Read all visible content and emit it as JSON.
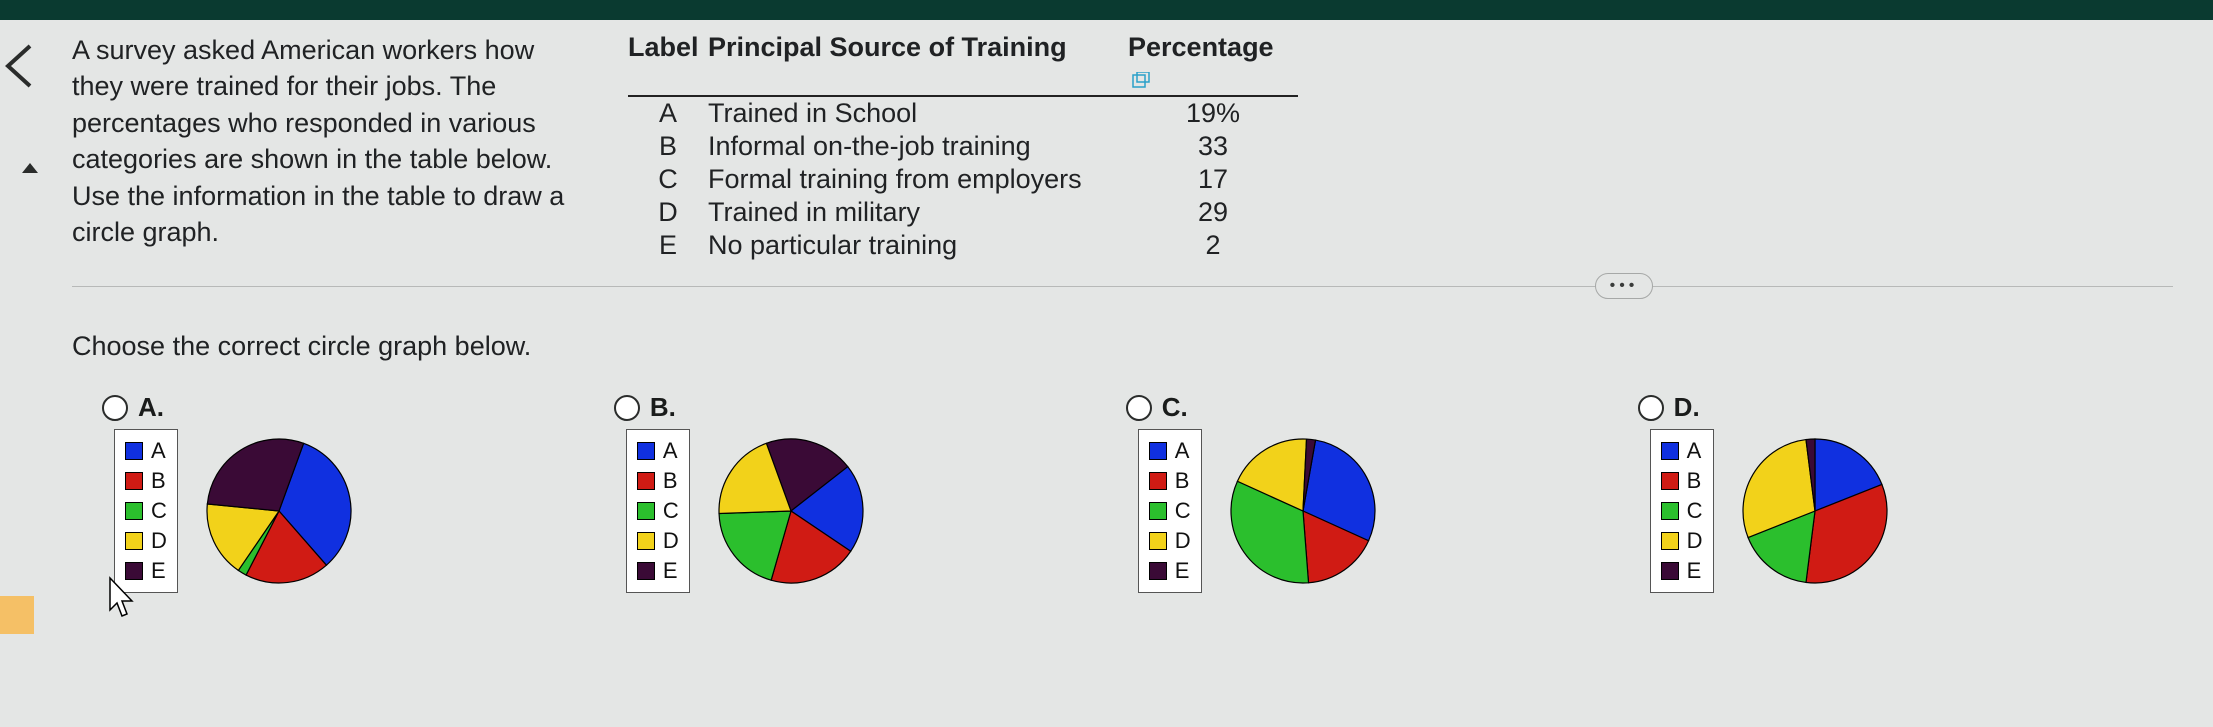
{
  "question_text": "A survey asked American workers how they were trained for their jobs. The percentages who responded in various categories are shown in the table below. Use the information in the table to draw a circle graph.",
  "table": {
    "headers": {
      "label": "Label",
      "source": "Principal Source of Training",
      "pct": "Percentage"
    },
    "rows": [
      {
        "label": "A",
        "source": "Trained in School",
        "pct": "19%"
      },
      {
        "label": "B",
        "source": "Informal on-the-job training",
        "pct": "33"
      },
      {
        "label": "C",
        "source": "Formal training from employers",
        "pct": "17"
      },
      {
        "label": "D",
        "source": "Trained in military",
        "pct": "29"
      },
      {
        "label": "E",
        "source": "No particular training",
        "pct": "2"
      }
    ]
  },
  "choose_text": "Choose the correct circle graph below.",
  "more_label": "•••",
  "legend_items": [
    "A",
    "B",
    "C",
    "D",
    "E"
  ],
  "colors": {
    "A": "#1030e0",
    "B": "#d01b14",
    "C": "#2bbf2d",
    "D": "#f2d21a",
    "E": "#3a0a36",
    "pie_stroke": "#000000",
    "page_bg": "#e4e6e5",
    "topbar": "#0a3a30",
    "orange": "#f5c066"
  },
  "options": {
    "A": {
      "label": "A.",
      "slices": [
        {
          "value": 33,
          "color": "#1030e0"
        },
        {
          "value": 19,
          "color": "#d01b14"
        },
        {
          "value": 2,
          "color": "#2bbf2d"
        },
        {
          "value": 17,
          "color": "#f2d21a"
        },
        {
          "value": 29,
          "color": "#3a0a36"
        }
      ],
      "start_deg": 20
    },
    "B": {
      "label": "B.",
      "slices": [
        {
          "value": 20,
          "color": "#3a0a36"
        },
        {
          "value": 20,
          "color": "#1030e0"
        },
        {
          "value": 20,
          "color": "#d01b14"
        },
        {
          "value": 20,
          "color": "#2bbf2d"
        },
        {
          "value": 20,
          "color": "#f2d21a"
        }
      ],
      "start_deg": -20
    },
    "C": {
      "label": "C.",
      "slices": [
        {
          "value": 29,
          "color": "#1030e0"
        },
        {
          "value": 17,
          "color": "#d01b14"
        },
        {
          "value": 33,
          "color": "#2bbf2d"
        },
        {
          "value": 19,
          "color": "#f2d21a"
        },
        {
          "value": 2,
          "color": "#3a0a36"
        }
      ],
      "start_deg": 10
    },
    "D": {
      "label": "D.",
      "slices": [
        {
          "value": 19,
          "color": "#1030e0"
        },
        {
          "value": 33,
          "color": "#d01b14"
        },
        {
          "value": 17,
          "color": "#2bbf2d"
        },
        {
          "value": 29,
          "color": "#f2d21a"
        },
        {
          "value": 2,
          "color": "#3a0a36"
        }
      ],
      "start_deg": 0
    }
  }
}
